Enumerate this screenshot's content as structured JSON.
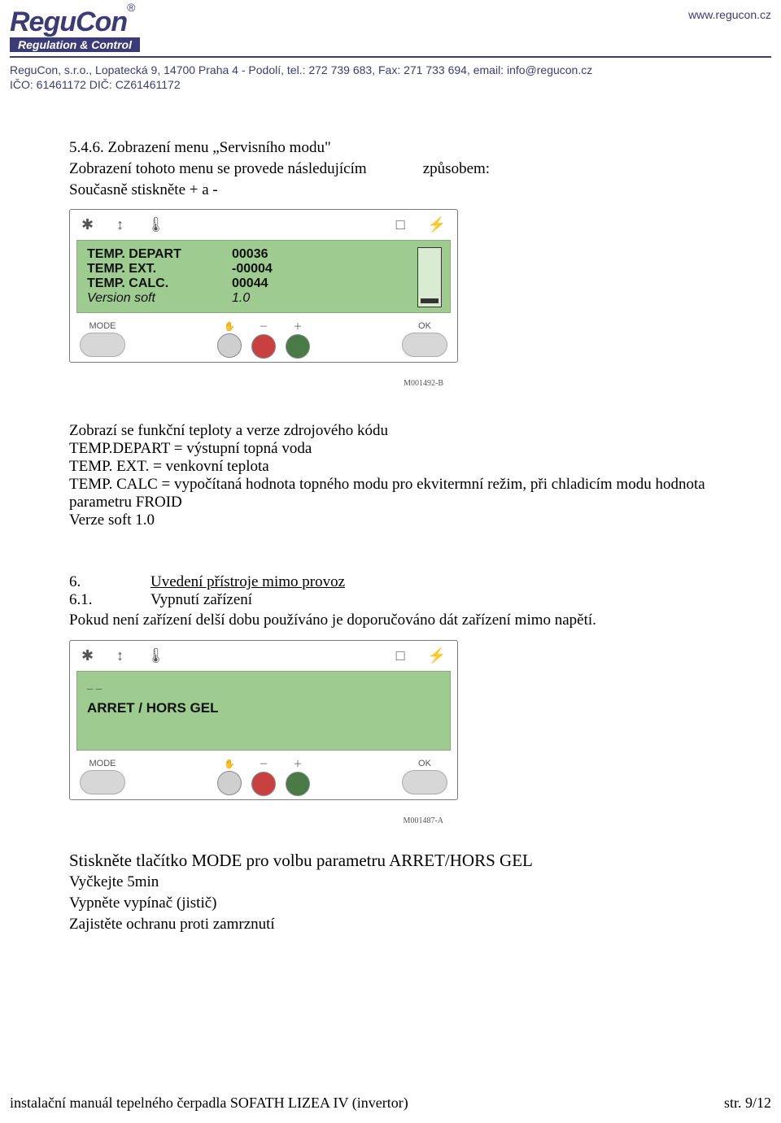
{
  "header": {
    "logo_name": "ReguCon",
    "logo_reg": "®",
    "logo_tag": "Regulation & Control",
    "addr_line1": "ReguCon, s.r.o., Lopatecká 9, 14700 Praha 4 - Podolí, tel.:  272 739 683, Fax:  271 733 694, email: info@regucon.cz",
    "addr_line2": "IČO: 61461172 DIČ: CZ61461172",
    "url": "www.regucon.cz"
  },
  "sec546": {
    "num": "5.4.6.",
    "title": "Zobrazení menu „Servisního modu\"",
    "line1a": "Zobrazení tohoto menu se provede následujícím",
    "line1b": "způsobem:",
    "line2": "Současně stiskněte + a -"
  },
  "panel1": {
    "rows": [
      {
        "key": "TEMP. DEPART",
        "val": "00036",
        "bold": true
      },
      {
        "key": "TEMP. EXT.",
        "val": "-00004",
        "bold": true
      },
      {
        "key": "TEMP. CALC.",
        "val": "00044",
        "bold": true
      },
      {
        "key": "Version soft",
        "val": "1.0",
        "bold": false
      }
    ],
    "ref": "M001492-B",
    "icons": [
      "✱",
      "↕",
      "🌡",
      "□",
      "⚡"
    ],
    "buttons": {
      "mode": "MODE",
      "hand": "✋",
      "minus": "－",
      "plus": "＋",
      "ok": "OK"
    }
  },
  "after_panel1": {
    "l1": "Zobrazí se funkční teploty a verze zdrojového kódu",
    "l2": "TEMP.DEPART = výstupní topná voda",
    "l3": "TEMP. EXT. = venkovní teplota",
    "l4": "TEMP. CALC = vypočítaná hodnota topného modu pro ekvitermní režim, při chladicím modu hodnota parametru FROID",
    "l5": "Verze soft 1.0"
  },
  "sec6": {
    "num": "6.",
    "title": "Uvedení přístroje mimo provoz",
    "sub_num": "6.1.",
    "sub_title": "Vypnutí zařízení",
    "p": "Pokud není zařízení delší dobu používáno je doporučováno dát zařízení mimo napětí."
  },
  "panel2": {
    "top_left": "_ _",
    "row1": "ARRET  /   HORS GEL",
    "ref": "M001487-A",
    "icons": [
      "✱",
      "↕",
      "🌡",
      "□",
      "⚡"
    ],
    "buttons": {
      "mode": "MODE",
      "hand": "✋",
      "minus": "－",
      "plus": "＋",
      "ok": "OK"
    }
  },
  "after_panel2": {
    "l1": "Stiskněte tlačítko MODE pro volbu parametru ARRET/HORS GEL",
    "l2": "Vyčkejte 5min",
    "l3": "Vypněte vypínač (jistič)",
    "l4": "Zajistěte ochranu proti zamrznutí"
  },
  "footer": {
    "left": "instalační manuál tepelného čerpadla SOFATH LIZEA IV (invertor)",
    "right": "str. 9/12"
  }
}
